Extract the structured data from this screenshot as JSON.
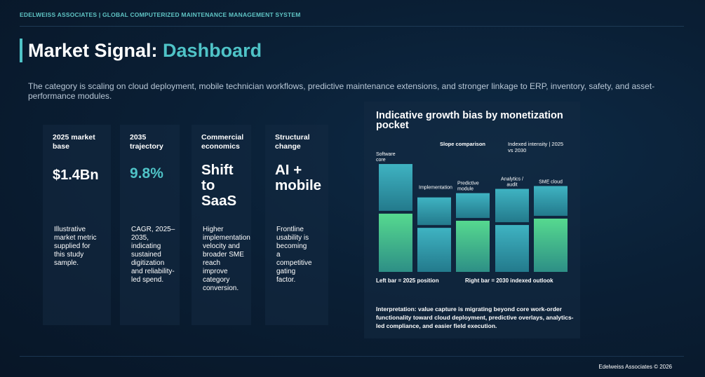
{
  "header": {
    "topbar": "EDELWEISS ASSOCIATES | GLOBAL COMPUTERIZED MAINTENANCE MANAGEMENT SYSTEM",
    "title_main": "Market Signal: ",
    "title_accent": "Dashboard"
  },
  "intro": "The category is scaling on cloud deployment, mobile technician workflows, predictive maintenance extensions, and stronger linkage to ERP, inventory, safety, and asset-performance modules.",
  "cards": [
    {
      "label": "2025 market base",
      "value": "$1.4Bn",
      "desc": "Illustrative market metric supplied for this study sample."
    },
    {
      "label": "2035 trajectory",
      "value": "9.8%",
      "desc": "CAGR, 2025–2035, indicating sustained digitization and reliability-led spend."
    },
    {
      "label": "Commercial economics",
      "value": "Shift to SaaS",
      "desc": "Higher implementation velocity and broader SME reach improve category conversion."
    },
    {
      "label": "Structural change",
      "value": "AI + mobile",
      "desc": "Frontline usability is becoming a competitive gating factor."
    }
  ],
  "chart_data": {
    "type": "bar",
    "title": "Indicative growth bias by monetization pocket",
    "subtitle_left": "Slope comparison",
    "subtitle_right": "Indexed intensity | 2025 vs 2030",
    "categories": [
      "Software core",
      "Implementation",
      "Predictive module",
      "Analytics / audit",
      "SME cloud"
    ],
    "series": [
      {
        "name": "2025",
        "values": [
          60,
          33,
          29,
          41,
          36
        ]
      },
      {
        "name": "2030",
        "values": [
          82,
          62,
          72,
          66,
          75
        ]
      }
    ],
    "ylim": [
      0,
      100
    ],
    "legend_left": "Left bar = 2025 position",
    "legend_right": "Right bar = 2030 indexed outlook",
    "colors": {
      "bar_2025": "#3aa8b8",
      "bar_2030": "#4fce8a"
    }
  },
  "interpretation": "Interpretation: value capture is migrating beyond core work-order functionality toward cloud deployment, predictive overlays, analytics-led compliance, and easier field execution.",
  "footer": "Edelweiss Associates © 2026"
}
